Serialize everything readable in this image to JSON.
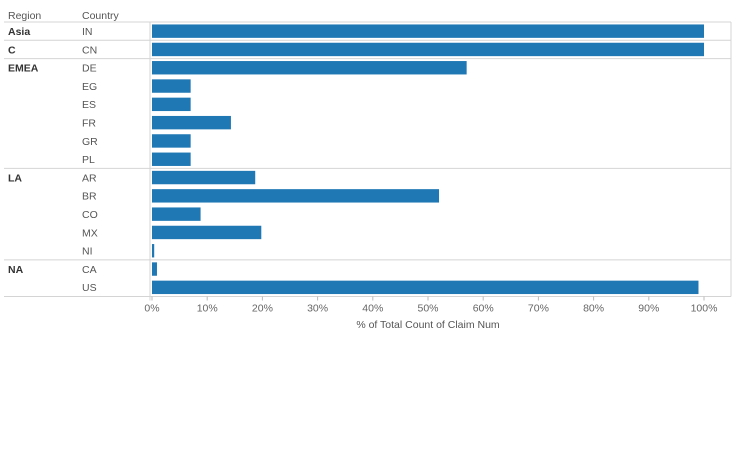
{
  "chart_data": {
    "type": "bar",
    "orientation": "horizontal",
    "row_header": "Region",
    "category_header": "Country",
    "xlabel": "% of Total Count of Claim Num",
    "xlim": [
      0,
      100
    ],
    "xticks": [
      "0%",
      "10%",
      "20%",
      "30%",
      "40%",
      "50%",
      "60%",
      "70%",
      "80%",
      "90%",
      "100%"
    ],
    "bar_color": "#1f77b4",
    "grid": false,
    "groups": [
      {
        "region": "Asia",
        "rows": [
          {
            "country": "IN",
            "value": 100
          }
        ]
      },
      {
        "region": "C",
        "rows": [
          {
            "country": "CN",
            "value": 100
          }
        ]
      },
      {
        "region": "EMEA",
        "rows": [
          {
            "country": "DE",
            "value": 57
          },
          {
            "country": "EG",
            "value": 7
          },
          {
            "country": "ES",
            "value": 7
          },
          {
            "country": "FR",
            "value": 14.3
          },
          {
            "country": "GR",
            "value": 7
          },
          {
            "country": "PL",
            "value": 7
          }
        ]
      },
      {
        "region": "LA",
        "rows": [
          {
            "country": "AR",
            "value": 18.7
          },
          {
            "country": "BR",
            "value": 52
          },
          {
            "country": "CO",
            "value": 8.8
          },
          {
            "country": "MX",
            "value": 19.8
          },
          {
            "country": "NI",
            "value": 0.4
          }
        ]
      },
      {
        "region": "NA",
        "rows": [
          {
            "country": "CA",
            "value": 0.9
          },
          {
            "country": "US",
            "value": 99
          }
        ]
      }
    ]
  }
}
